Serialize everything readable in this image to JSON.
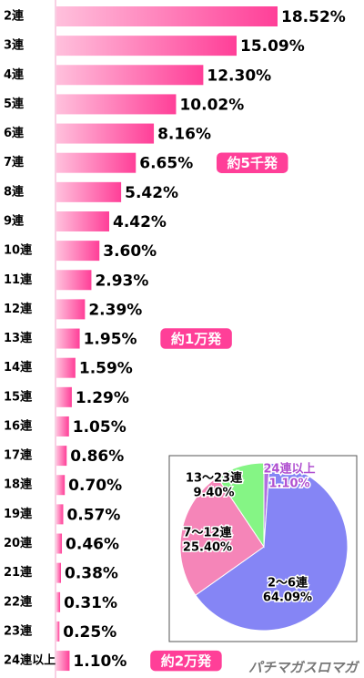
{
  "chart_data": [
    {
      "type": "bar",
      "categories": [
        "2連",
        "3連",
        "4連",
        "5連",
        "6連",
        "7連",
        "8連",
        "9連",
        "10連",
        "11連",
        "12連",
        "13連",
        "14連",
        "15連",
        "16連",
        "17連",
        "18連",
        "19連",
        "20連",
        "21連",
        "22連",
        "23連",
        "24連以上"
      ],
      "values": [
        18.52,
        15.09,
        12.3,
        10.02,
        8.16,
        6.65,
        5.42,
        4.42,
        3.6,
        2.93,
        2.39,
        1.95,
        1.59,
        1.29,
        1.05,
        0.86,
        0.7,
        0.57,
        0.46,
        0.38,
        0.31,
        0.25,
        1.1
      ],
      "value_labels": [
        "18.52%",
        "15.09%",
        "12.30%",
        "10.02%",
        "8.16%",
        "6.65%",
        "5.42%",
        "4.42%",
        "3.60%",
        "2.93%",
        "2.39%",
        "1.95%",
        "1.59%",
        "1.29%",
        "1.05%",
        "0.86%",
        "0.70%",
        "0.57%",
        "0.46%",
        "0.38%",
        "0.31%",
        "0.25%",
        "1.10%"
      ],
      "color": "#ff4fa0",
      "annotations": [
        {
          "text": "約5千発",
          "category": "7連"
        },
        {
          "text": "約1万発",
          "category": "13連"
        },
        {
          "text": "約2万発",
          "category": "24連以上"
        }
      ],
      "watermark": "パチマガスロマガ"
    },
    {
      "type": "pie",
      "categories": [
        "24連以上",
        "2〜6連",
        "7〜12連",
        "13〜23連"
      ],
      "values": [
        1.1,
        64.09,
        25.4,
        9.4
      ],
      "value_labels": [
        "1.10%",
        "64.09%",
        "25.40%",
        "9.40%"
      ],
      "colors": [
        "#b070e0",
        "#8585f5",
        "#f585b8",
        "#85f585"
      ]
    }
  ]
}
